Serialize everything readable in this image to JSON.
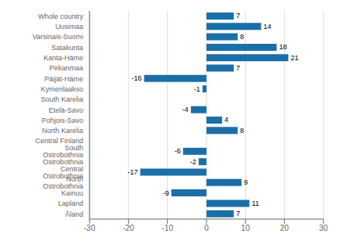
{
  "chart_data": {
    "type": "bar",
    "orientation": "horizontal",
    "categories": [
      "Whole country",
      "Uusimaa",
      "Varsinais-Suomi",
      "Satakunta",
      "Kanta-Häme",
      "Pirkanmaa",
      "Päijät-Häme",
      "Kymenlaakso",
      "South Karelia",
      "Etelä-Savo",
      "Pohjois-Savo",
      "North Karelia",
      "Central Finland",
      "South Ostrobothnia",
      "Ostrobothnia",
      "Central Ostrobothnia",
      "North Ostrobothnia",
      "Kainuu",
      "Lapland",
      "Åland"
    ],
    "values": [
      7,
      14,
      8,
      18,
      21,
      7,
      -16,
      -1,
      0,
      -4,
      4,
      8,
      0,
      -6,
      -2,
      -17,
      9,
      -9,
      11,
      7
    ],
    "color": "#1a6fa8",
    "xlim": [
      -30,
      30
    ],
    "xticks": [
      -30,
      -20,
      -10,
      0,
      10,
      20,
      30
    ],
    "grid": true,
    "data_labels": true
  }
}
